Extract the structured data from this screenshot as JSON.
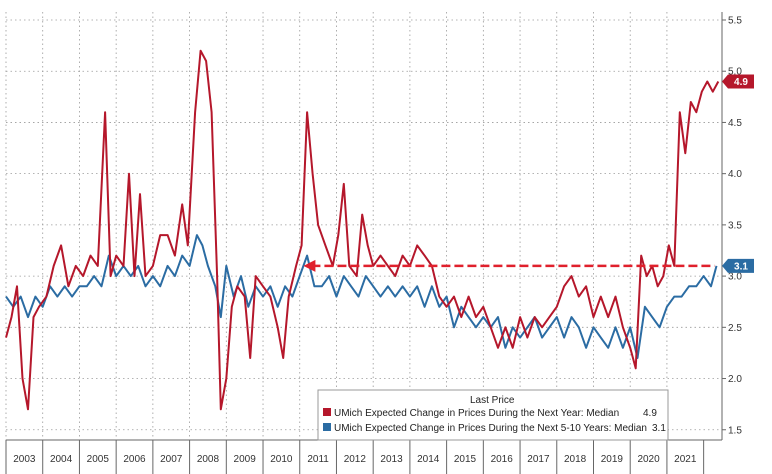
{
  "chart_data": {
    "type": "line",
    "title": "",
    "xlabel": "",
    "ylabel": "",
    "ylim": [
      1.4,
      5.5
    ],
    "yticks": [
      "1.5",
      "2.0",
      "2.5",
      "3.0",
      "3.5",
      "4.0",
      "4.5",
      "5.0",
      "5.5"
    ],
    "ytick_values": [
      1.5,
      2.0,
      2.5,
      3.0,
      3.5,
      4.0,
      4.5,
      5.0,
      5.5
    ],
    "year_labels": [
      "2003",
      "2004",
      "2005",
      "2006",
      "2007",
      "2008",
      "2009",
      "2010",
      "2011",
      "2012",
      "2013",
      "2014",
      "2015",
      "2016",
      "2017",
      "2018",
      "2019",
      "2020",
      "2021"
    ],
    "xlim": [
      2003.0,
      2022.5
    ],
    "legend": {
      "title": "Last Price",
      "entries": [
        {
          "label": "UMich Expected Change in Prices During the Next Year: Median",
          "value": "4.9",
          "color": "#b5172b"
        },
        {
          "label": "UMich Expected Change in Prices During the Next 5-10 Years: Median",
          "value": "3.1",
          "color": "#2b6ca3"
        }
      ]
    },
    "last_values": {
      "one_year": {
        "label": "4.9",
        "value": 4.9,
        "color": "#b5172b"
      },
      "five_ten_year": {
        "label": "3.1",
        "value": 3.1,
        "color": "#2b6ca3"
      }
    },
    "reference_line": {
      "value": 3.1,
      "x_start": 2011.1,
      "x_end": 2022.3,
      "color": "#e0202c"
    },
    "series": [
      {
        "name": "UMich Expected Change in Prices During the Next Year: Median",
        "color": "#b5172b",
        "points": [
          [
            2003.0,
            2.4
          ],
          [
            2003.15,
            2.6
          ],
          [
            2003.3,
            2.9
          ],
          [
            2003.45,
            2.0
          ],
          [
            2003.6,
            1.7
          ],
          [
            2003.75,
            2.6
          ],
          [
            2003.9,
            2.7
          ],
          [
            2004.1,
            2.8
          ],
          [
            2004.3,
            3.1
          ],
          [
            2004.5,
            3.3
          ],
          [
            2004.7,
            2.9
          ],
          [
            2004.9,
            3.1
          ],
          [
            2005.1,
            3.0
          ],
          [
            2005.3,
            3.2
          ],
          [
            2005.5,
            3.1
          ],
          [
            2005.7,
            4.6
          ],
          [
            2005.85,
            3.0
          ],
          [
            2006.0,
            3.2
          ],
          [
            2006.2,
            3.1
          ],
          [
            2006.35,
            4.0
          ],
          [
            2006.5,
            3.0
          ],
          [
            2006.65,
            3.8
          ],
          [
            2006.8,
            3.0
          ],
          [
            2007.0,
            3.1
          ],
          [
            2007.2,
            3.4
          ],
          [
            2007.4,
            3.4
          ],
          [
            2007.6,
            3.2
          ],
          [
            2007.8,
            3.7
          ],
          [
            2007.95,
            3.3
          ],
          [
            2008.15,
            4.6
          ],
          [
            2008.3,
            5.2
          ],
          [
            2008.45,
            5.1
          ],
          [
            2008.6,
            4.6
          ],
          [
            2008.75,
            3.0
          ],
          [
            2008.85,
            1.7
          ],
          [
            2009.0,
            2.0
          ],
          [
            2009.15,
            2.7
          ],
          [
            2009.3,
            2.9
          ],
          [
            2009.5,
            2.8
          ],
          [
            2009.65,
            2.2
          ],
          [
            2009.8,
            3.0
          ],
          [
            2010.0,
            2.9
          ],
          [
            2010.2,
            2.8
          ],
          [
            2010.4,
            2.5
          ],
          [
            2010.55,
            2.2
          ],
          [
            2010.7,
            2.8
          ],
          [
            2010.9,
            3.1
          ],
          [
            2011.05,
            3.3
          ],
          [
            2011.2,
            4.6
          ],
          [
            2011.35,
            4.0
          ],
          [
            2011.5,
            3.5
          ],
          [
            2011.7,
            3.3
          ],
          [
            2011.9,
            3.1
          ],
          [
            2012.05,
            3.4
          ],
          [
            2012.2,
            3.9
          ],
          [
            2012.35,
            3.1
          ],
          [
            2012.55,
            3.0
          ],
          [
            2012.7,
            3.6
          ],
          [
            2012.85,
            3.3
          ],
          [
            2013.0,
            3.1
          ],
          [
            2013.2,
            3.2
          ],
          [
            2013.4,
            3.1
          ],
          [
            2013.6,
            3.0
          ],
          [
            2013.8,
            3.2
          ],
          [
            2014.0,
            3.1
          ],
          [
            2014.2,
            3.3
          ],
          [
            2014.4,
            3.2
          ],
          [
            2014.6,
            3.1
          ],
          [
            2014.8,
            2.8
          ],
          [
            2015.0,
            2.7
          ],
          [
            2015.2,
            2.8
          ],
          [
            2015.4,
            2.6
          ],
          [
            2015.6,
            2.8
          ],
          [
            2015.8,
            2.6
          ],
          [
            2016.0,
            2.7
          ],
          [
            2016.2,
            2.5
          ],
          [
            2016.4,
            2.3
          ],
          [
            2016.6,
            2.5
          ],
          [
            2016.8,
            2.3
          ],
          [
            2017.0,
            2.6
          ],
          [
            2017.2,
            2.4
          ],
          [
            2017.4,
            2.6
          ],
          [
            2017.6,
            2.5
          ],
          [
            2017.8,
            2.6
          ],
          [
            2018.0,
            2.7
          ],
          [
            2018.2,
            2.9
          ],
          [
            2018.4,
            3.0
          ],
          [
            2018.6,
            2.8
          ],
          [
            2018.8,
            2.9
          ],
          [
            2019.0,
            2.6
          ],
          [
            2019.2,
            2.8
          ],
          [
            2019.4,
            2.6
          ],
          [
            2019.6,
            2.8
          ],
          [
            2019.8,
            2.5
          ],
          [
            2020.0,
            2.3
          ],
          [
            2020.15,
            2.1
          ],
          [
            2020.3,
            3.2
          ],
          [
            2020.45,
            3.0
          ],
          [
            2020.6,
            3.1
          ],
          [
            2020.75,
            2.9
          ],
          [
            2020.9,
            3.0
          ],
          [
            2021.05,
            3.3
          ],
          [
            2021.2,
            3.1
          ],
          [
            2021.35,
            4.6
          ],
          [
            2021.5,
            4.2
          ],
          [
            2021.65,
            4.7
          ],
          [
            2021.8,
            4.6
          ],
          [
            2021.95,
            4.8
          ],
          [
            2022.1,
            4.9
          ],
          [
            2022.25,
            4.8
          ],
          [
            2022.4,
            4.9
          ]
        ]
      },
      {
        "name": "UMich Expected Change in Prices During the Next 5-10 Years: Median",
        "color": "#2b6ca3",
        "points": [
          [
            2003.0,
            2.8
          ],
          [
            2003.2,
            2.7
          ],
          [
            2003.4,
            2.8
          ],
          [
            2003.6,
            2.6
          ],
          [
            2003.8,
            2.8
          ],
          [
            2004.0,
            2.7
          ],
          [
            2004.2,
            2.9
          ],
          [
            2004.4,
            2.8
          ],
          [
            2004.6,
            2.9
          ],
          [
            2004.8,
            2.8
          ],
          [
            2005.0,
            2.9
          ],
          [
            2005.2,
            2.9
          ],
          [
            2005.4,
            3.0
          ],
          [
            2005.6,
            2.9
          ],
          [
            2005.8,
            3.2
          ],
          [
            2006.0,
            3.0
          ],
          [
            2006.2,
            3.1
          ],
          [
            2006.4,
            3.0
          ],
          [
            2006.6,
            3.1
          ],
          [
            2006.8,
            2.9
          ],
          [
            2007.0,
            3.0
          ],
          [
            2007.2,
            2.9
          ],
          [
            2007.4,
            3.1
          ],
          [
            2007.6,
            3.0
          ],
          [
            2007.8,
            3.2
          ],
          [
            2008.0,
            3.1
          ],
          [
            2008.2,
            3.4
          ],
          [
            2008.35,
            3.3
          ],
          [
            2008.5,
            3.1
          ],
          [
            2008.7,
            2.9
          ],
          [
            2008.85,
            2.6
          ],
          [
            2009.0,
            3.1
          ],
          [
            2009.2,
            2.8
          ],
          [
            2009.4,
            3.0
          ],
          [
            2009.6,
            2.7
          ],
          [
            2009.8,
            2.9
          ],
          [
            2010.0,
            2.8
          ],
          [
            2010.2,
            2.9
          ],
          [
            2010.4,
            2.7
          ],
          [
            2010.6,
            2.9
          ],
          [
            2010.8,
            2.8
          ],
          [
            2011.0,
            3.0
          ],
          [
            2011.2,
            3.2
          ],
          [
            2011.4,
            2.9
          ],
          [
            2011.6,
            2.9
          ],
          [
            2011.8,
            3.0
          ],
          [
            2012.0,
            2.8
          ],
          [
            2012.2,
            3.0
          ],
          [
            2012.4,
            2.9
          ],
          [
            2012.6,
            2.8
          ],
          [
            2012.8,
            3.0
          ],
          [
            2013.0,
            2.9
          ],
          [
            2013.2,
            2.8
          ],
          [
            2013.4,
            2.9
          ],
          [
            2013.6,
            2.8
          ],
          [
            2013.8,
            2.9
          ],
          [
            2014.0,
            2.8
          ],
          [
            2014.2,
            2.9
          ],
          [
            2014.4,
            2.7
          ],
          [
            2014.6,
            2.9
          ],
          [
            2014.8,
            2.7
          ],
          [
            2015.0,
            2.8
          ],
          [
            2015.2,
            2.5
          ],
          [
            2015.4,
            2.7
          ],
          [
            2015.6,
            2.6
          ],
          [
            2015.8,
            2.5
          ],
          [
            2016.0,
            2.6
          ],
          [
            2016.2,
            2.5
          ],
          [
            2016.4,
            2.6
          ],
          [
            2016.6,
            2.3
          ],
          [
            2016.8,
            2.5
          ],
          [
            2017.0,
            2.4
          ],
          [
            2017.2,
            2.5
          ],
          [
            2017.4,
            2.6
          ],
          [
            2017.6,
            2.4
          ],
          [
            2017.8,
            2.5
          ],
          [
            2018.0,
            2.6
          ],
          [
            2018.2,
            2.4
          ],
          [
            2018.4,
            2.6
          ],
          [
            2018.6,
            2.5
          ],
          [
            2018.8,
            2.3
          ],
          [
            2019.0,
            2.5
          ],
          [
            2019.2,
            2.4
          ],
          [
            2019.4,
            2.3
          ],
          [
            2019.6,
            2.5
          ],
          [
            2019.8,
            2.3
          ],
          [
            2020.0,
            2.5
          ],
          [
            2020.2,
            2.2
          ],
          [
            2020.4,
            2.7
          ],
          [
            2020.6,
            2.6
          ],
          [
            2020.8,
            2.5
          ],
          [
            2021.0,
            2.7
          ],
          [
            2021.2,
            2.8
          ],
          [
            2021.4,
            2.8
          ],
          [
            2021.6,
            2.9
          ],
          [
            2021.8,
            2.9
          ],
          [
            2022.0,
            3.0
          ],
          [
            2022.2,
            2.9
          ],
          [
            2022.35,
            3.1
          ]
        ]
      }
    ]
  }
}
